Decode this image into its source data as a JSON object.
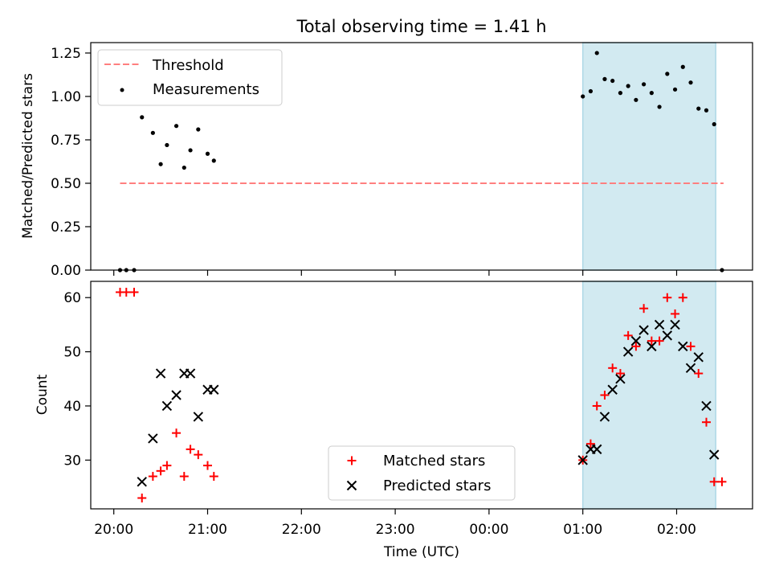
{
  "title": "Total observing time = 1.41 h",
  "colors": {
    "threshold": "#ff7f7f",
    "measurement": "#000000",
    "matched": "#ff0000",
    "predicted": "#000000",
    "shade": "#add8e6"
  },
  "chart_data": [
    {
      "type": "scatter",
      "ylabel": "Matched/Predicted stars",
      "ylim": [
        0,
        1.31
      ],
      "yticks": [
        "0.00",
        "0.25",
        "0.50",
        "0.75",
        "1.00",
        "1.25"
      ],
      "x_unit": "hours since 20:00 UTC on shared time axis",
      "legend": [
        "Threshold",
        "Measurements"
      ],
      "legend_position": "upper left",
      "shaded_region": {
        "x_start": "01:00",
        "x_end": "02:25"
      },
      "threshold": {
        "value": 0.5,
        "x_start": "20:04",
        "x_end": "02:30"
      },
      "series": [
        {
          "name": "Measurements",
          "points": [
            [
              "20:04",
              0.0
            ],
            [
              "20:08",
              0.0
            ],
            [
              "20:13",
              0.0
            ],
            [
              "20:18",
              0.88
            ],
            [
              "20:25",
              0.79
            ],
            [
              "20:30",
              0.61
            ],
            [
              "20:34",
              0.72
            ],
            [
              "20:40",
              0.83
            ],
            [
              "20:45",
              0.59
            ],
            [
              "20:49",
              0.69
            ],
            [
              "20:54",
              0.81
            ],
            [
              "21:00",
              0.67
            ],
            [
              "21:04",
              0.63
            ],
            [
              "01:00",
              1.0
            ],
            [
              "01:05",
              1.03
            ],
            [
              "01:09",
              1.25
            ],
            [
              "01:14",
              1.1
            ],
            [
              "01:19",
              1.09
            ],
            [
              "01:24",
              1.02
            ],
            [
              "01:29",
              1.06
            ],
            [
              "01:34",
              0.98
            ],
            [
              "01:39",
              1.07
            ],
            [
              "01:44",
              1.02
            ],
            [
              "01:49",
              0.94
            ],
            [
              "01:54",
              1.13
            ],
            [
              "01:59",
              1.04
            ],
            [
              "02:04",
              1.17
            ],
            [
              "02:09",
              1.08
            ],
            [
              "02:14",
              0.93
            ],
            [
              "02:19",
              0.92
            ],
            [
              "02:24",
              0.84
            ],
            [
              "02:29",
              0.0
            ]
          ]
        }
      ]
    },
    {
      "type": "scatter",
      "xlabel": "Time (UTC)",
      "ylabel": "Count",
      "ylim": [
        21,
        63
      ],
      "yticks": [
        "30",
        "40",
        "50",
        "60"
      ],
      "xticks": [
        "20:00",
        "21:00",
        "22:00",
        "23:00",
        "00:00",
        "01:00",
        "02:00"
      ],
      "legend": [
        "Matched stars",
        "Predicted stars"
      ],
      "legend_position": "lower center",
      "shaded_region": {
        "x_start": "01:00",
        "x_end": "02:25"
      },
      "series": [
        {
          "name": "Matched stars",
          "points": [
            [
              "20:04",
              61
            ],
            [
              "20:08",
              61
            ],
            [
              "20:13",
              61
            ],
            [
              "20:18",
              23
            ],
            [
              "20:25",
              27
            ],
            [
              "20:30",
              28
            ],
            [
              "20:34",
              29
            ],
            [
              "20:40",
              35
            ],
            [
              "20:45",
              27
            ],
            [
              "20:49",
              32
            ],
            [
              "20:54",
              31
            ],
            [
              "21:00",
              29
            ],
            [
              "21:04",
              27
            ],
            [
              "01:00",
              30
            ],
            [
              "01:05",
              33
            ],
            [
              "01:09",
              40
            ],
            [
              "01:14",
              42
            ],
            [
              "01:19",
              47
            ],
            [
              "01:24",
              46
            ],
            [
              "01:29",
              53
            ],
            [
              "01:34",
              51
            ],
            [
              "01:39",
              58
            ],
            [
              "01:44",
              52
            ],
            [
              "01:49",
              52
            ],
            [
              "01:54",
              60
            ],
            [
              "01:59",
              57
            ],
            [
              "02:04",
              60
            ],
            [
              "02:09",
              51
            ],
            [
              "02:14",
              46
            ],
            [
              "02:19",
              37
            ],
            [
              "02:24",
              26
            ],
            [
              "02:29",
              26
            ]
          ]
        },
        {
          "name": "Predicted stars",
          "points": [
            [
              "20:18",
              26
            ],
            [
              "20:25",
              34
            ],
            [
              "20:30",
              46
            ],
            [
              "20:34",
              40
            ],
            [
              "20:40",
              42
            ],
            [
              "20:45",
              46
            ],
            [
              "20:49",
              46
            ],
            [
              "20:54",
              38
            ],
            [
              "21:00",
              43
            ],
            [
              "21:04",
              43
            ],
            [
              "01:00",
              30
            ],
            [
              "01:05",
              32
            ],
            [
              "01:09",
              32
            ],
            [
              "01:14",
              38
            ],
            [
              "01:19",
              43
            ],
            [
              "01:24",
              45
            ],
            [
              "01:29",
              50
            ],
            [
              "01:34",
              52
            ],
            [
              "01:39",
              54
            ],
            [
              "01:44",
              51
            ],
            [
              "01:49",
              55
            ],
            [
              "01:54",
              53
            ],
            [
              "01:59",
              55
            ],
            [
              "02:04",
              51
            ],
            [
              "02:09",
              47
            ],
            [
              "02:14",
              49
            ],
            [
              "02:19",
              40
            ],
            [
              "02:24",
              31
            ]
          ]
        }
      ]
    }
  ]
}
